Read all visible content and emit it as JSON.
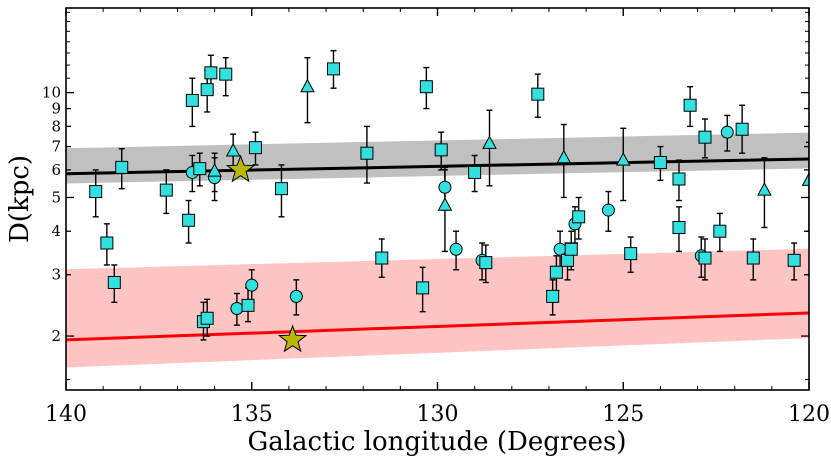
{
  "chart_data": {
    "type": "scatter",
    "title": "",
    "xlabel": "Galactic longitude (Degrees)",
    "ylabel": "D(kpc)",
    "xlim": [
      140,
      120
    ],
    "ylim": [
      1.4,
      17.5
    ],
    "y_scale": "log",
    "grid": false,
    "x_ticks": [
      140,
      135,
      130,
      125,
      120
    ],
    "x_tick_labels": [
      "140",
      "135",
      "130",
      "125",
      "120"
    ],
    "y_ticks": [
      2,
      3,
      4,
      5,
      6,
      7,
      8,
      9,
      10
    ],
    "y_tick_labels": [
      "2",
      "3",
      "4",
      "5",
      "6",
      "7",
      "8",
      "9",
      "10"
    ],
    "colors": {
      "marker_fill": "#33e0e0",
      "perseus_band": "#c0c0c0",
      "perseus_line": "#000000",
      "local_band": "#ffc4c4",
      "local_line": "#ff0000",
      "star_fill": "#b8b800"
    },
    "bands": [
      {
        "name": "upper-band",
        "x": [
          140,
          120
        ],
        "center": [
          5.85,
          6.45
        ],
        "lower": [
          5.5,
          6.08
        ],
        "upper": [
          6.9,
          7.65
        ]
      },
      {
        "name": "lower-band",
        "x": [
          140,
          120
        ],
        "center": [
          1.95,
          2.33
        ],
        "lower": [
          1.63,
          1.98
        ],
        "upper": [
          3.1,
          3.55
        ]
      }
    ],
    "stars": [
      {
        "l": 135.3,
        "d": 6.0
      },
      {
        "l": 133.9,
        "d": 1.95
      }
    ],
    "points": [
      {
        "shape": "square",
        "l": 139.2,
        "d": 5.2,
        "lo": 4.4,
        "hi": 6.0
      },
      {
        "shape": "square",
        "l": 138.9,
        "d": 3.7,
        "lo": 3.2,
        "hi": 4.2
      },
      {
        "shape": "square",
        "l": 138.7,
        "d": 2.85,
        "lo": 2.5,
        "hi": 3.2
      },
      {
        "shape": "square",
        "l": 138.5,
        "d": 6.1,
        "lo": 5.3,
        "hi": 6.9
      },
      {
        "shape": "square",
        "l": 137.3,
        "d": 5.25,
        "lo": 4.5,
        "hi": 6.0
      },
      {
        "shape": "square",
        "l": 136.7,
        "d": 4.3,
        "lo": 3.7,
        "hi": 4.9
      },
      {
        "shape": "square",
        "l": 136.6,
        "d": 9.5,
        "lo": 8.0,
        "hi": 11.0
      },
      {
        "shape": "circle",
        "l": 136.6,
        "d": 5.9,
        "lo": 5.2,
        "hi": 6.6
      },
      {
        "shape": "square",
        "l": 136.4,
        "d": 6.05,
        "lo": 5.4,
        "hi": 6.7
      },
      {
        "shape": "square",
        "l": 136.3,
        "d": 2.2,
        "lo": 1.95,
        "hi": 2.5
      },
      {
        "shape": "square",
        "l": 136.2,
        "d": 2.25,
        "lo": 2.0,
        "hi": 2.55
      },
      {
        "shape": "square",
        "l": 136.2,
        "d": 10.2,
        "lo": 8.8,
        "hi": 11.6
      },
      {
        "shape": "square",
        "l": 136.1,
        "d": 11.4,
        "lo": 10.0,
        "hi": 12.8
      },
      {
        "shape": "circle",
        "l": 136.0,
        "d": 5.7,
        "lo": 4.9,
        "hi": 6.5
      },
      {
        "shape": "triangle",
        "l": 136.0,
        "d": 5.95,
        "lo": 5.2,
        "hi": 6.7
      },
      {
        "shape": "square",
        "l": 135.7,
        "d": 11.3,
        "lo": 9.8,
        "hi": 12.6
      },
      {
        "shape": "triangle",
        "l": 135.5,
        "d": 6.8,
        "lo": 6.0,
        "hi": 7.6
      },
      {
        "shape": "circle",
        "l": 135.4,
        "d": 2.4,
        "lo": 2.15,
        "hi": 2.65
      },
      {
        "shape": "square",
        "l": 135.1,
        "d": 2.45,
        "lo": 2.2,
        "hi": 2.75
      },
      {
        "shape": "circle",
        "l": 135.0,
        "d": 2.8,
        "lo": 2.5,
        "hi": 3.1
      },
      {
        "shape": "square",
        "l": 134.9,
        "d": 6.95,
        "lo": 6.2,
        "hi": 7.7
      },
      {
        "shape": "square",
        "l": 134.2,
        "d": 5.3,
        "lo": 4.4,
        "hi": 6.2
      },
      {
        "shape": "circle",
        "l": 133.8,
        "d": 2.6,
        "lo": 2.3,
        "hi": 2.9
      },
      {
        "shape": "triangle",
        "l": 133.5,
        "d": 10.4,
        "lo": 8.2,
        "hi": 12.6
      },
      {
        "shape": "square",
        "l": 132.8,
        "d": 11.7,
        "lo": 10.3,
        "hi": 13.2
      },
      {
        "shape": "square",
        "l": 131.9,
        "d": 6.7,
        "lo": 5.5,
        "hi": 8.0
      },
      {
        "shape": "square",
        "l": 131.5,
        "d": 3.35,
        "lo": 2.95,
        "hi": 3.8
      },
      {
        "shape": "square",
        "l": 130.4,
        "d": 2.75,
        "lo": 2.35,
        "hi": 3.15
      },
      {
        "shape": "square",
        "l": 130.3,
        "d": 10.4,
        "lo": 9.0,
        "hi": 11.8
      },
      {
        "shape": "square",
        "l": 129.9,
        "d": 6.85,
        "lo": 6.0,
        "hi": 7.7
      },
      {
        "shape": "circle",
        "l": 129.8,
        "d": 5.35,
        "lo": 4.6,
        "hi": 6.1
      },
      {
        "shape": "triangle",
        "l": 129.8,
        "d": 4.75,
        "lo": 3.5,
        "hi": 6.0
      },
      {
        "shape": "circle",
        "l": 129.5,
        "d": 3.55,
        "lo": 3.1,
        "hi": 4.0
      },
      {
        "shape": "square",
        "l": 129.0,
        "d": 5.9,
        "lo": 5.2,
        "hi": 6.6
      },
      {
        "shape": "circle",
        "l": 128.8,
        "d": 3.3,
        "lo": 2.9,
        "hi": 3.7
      },
      {
        "shape": "square",
        "l": 128.7,
        "d": 3.25,
        "lo": 2.85,
        "hi": 3.65
      },
      {
        "shape": "triangle",
        "l": 128.6,
        "d": 7.15,
        "lo": 5.4,
        "hi": 8.9
      },
      {
        "shape": "square",
        "l": 127.3,
        "d": 9.9,
        "lo": 8.5,
        "hi": 11.3
      },
      {
        "shape": "square",
        "l": 126.9,
        "d": 2.6,
        "lo": 2.3,
        "hi": 2.9
      },
      {
        "shape": "square",
        "l": 126.8,
        "d": 3.05,
        "lo": 2.7,
        "hi": 3.4
      },
      {
        "shape": "circle",
        "l": 126.7,
        "d": 3.55,
        "lo": 3.1,
        "hi": 4.0
      },
      {
        "shape": "triangle",
        "l": 126.6,
        "d": 6.5,
        "lo": 5.0,
        "hi": 8.1
      },
      {
        "shape": "square",
        "l": 126.5,
        "d": 3.3,
        "lo": 2.9,
        "hi": 3.7
      },
      {
        "shape": "square",
        "l": 126.4,
        "d": 3.55,
        "lo": 3.1,
        "hi": 4.0
      },
      {
        "shape": "circle",
        "l": 126.3,
        "d": 4.2,
        "lo": 3.7,
        "hi": 4.7
      },
      {
        "shape": "square",
        "l": 126.2,
        "d": 4.4,
        "lo": 3.8,
        "hi": 5.0
      },
      {
        "shape": "circle",
        "l": 125.4,
        "d": 4.6,
        "lo": 4.0,
        "hi": 5.2
      },
      {
        "shape": "triangle",
        "l": 125.0,
        "d": 6.4,
        "lo": 4.9,
        "hi": 7.9
      },
      {
        "shape": "square",
        "l": 124.8,
        "d": 3.45,
        "lo": 3.05,
        "hi": 3.85
      },
      {
        "shape": "square",
        "l": 124.0,
        "d": 6.3,
        "lo": 5.6,
        "hi": 7.0
      },
      {
        "shape": "square",
        "l": 123.5,
        "d": 5.65,
        "lo": 4.9,
        "hi": 6.4
      },
      {
        "shape": "square",
        "l": 123.5,
        "d": 4.1,
        "lo": 3.5,
        "hi": 4.7
      },
      {
        "shape": "square",
        "l": 123.2,
        "d": 9.2,
        "lo": 8.0,
        "hi": 10.4
      },
      {
        "shape": "circle",
        "l": 122.9,
        "d": 3.4,
        "lo": 2.95,
        "hi": 3.85
      },
      {
        "shape": "square",
        "l": 122.8,
        "d": 7.45,
        "lo": 6.5,
        "hi": 8.4
      },
      {
        "shape": "square",
        "l": 122.8,
        "d": 3.35,
        "lo": 2.9,
        "hi": 3.8
      },
      {
        "shape": "square",
        "l": 122.4,
        "d": 4.0,
        "lo": 3.5,
        "hi": 4.5
      },
      {
        "shape": "circle",
        "l": 122.2,
        "d": 7.7,
        "lo": 6.8,
        "hi": 8.6
      },
      {
        "shape": "square",
        "l": 121.8,
        "d": 7.85,
        "lo": 6.7,
        "hi": 9.2
      },
      {
        "shape": "square",
        "l": 121.5,
        "d": 3.35,
        "lo": 2.9,
        "hi": 3.8
      },
      {
        "shape": "triangle",
        "l": 121.2,
        "d": 5.25,
        "lo": 4.1,
        "hi": 6.5
      },
      {
        "shape": "square",
        "l": 120.4,
        "d": 3.3,
        "lo": 2.9,
        "hi": 3.7
      },
      {
        "shape": "triangle",
        "l": 120.0,
        "d": 5.6,
        "lo": 4.0,
        "hi": 7.2
      }
    ]
  }
}
